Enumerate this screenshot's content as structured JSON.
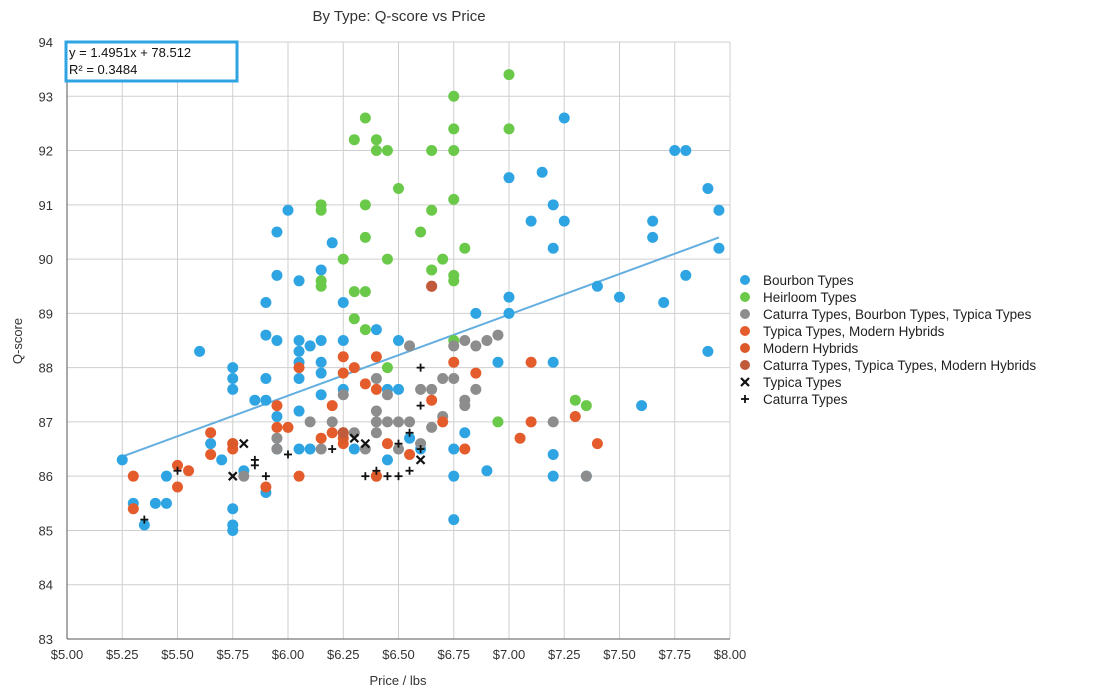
{
  "chart_data": {
    "type": "scatter",
    "title": "By Type: Q-score vs Price",
    "xlabel": "Price / lbs",
    "ylabel": "Q-score",
    "xlim": [
      5.0,
      8.0
    ],
    "ylim": [
      83,
      94
    ],
    "x_ticks": [
      "$5.00",
      "$5.25",
      "$5.50",
      "$5.75",
      "$6.00",
      "$6.25",
      "$6.50",
      "$6.75",
      "$7.00",
      "$7.25",
      "$7.50",
      "$7.75",
      "$8.00"
    ],
    "y_ticks": [
      "83",
      "84",
      "85",
      "86",
      "87",
      "88",
      "89",
      "90",
      "91",
      "92",
      "93",
      "94"
    ],
    "grid": true,
    "legend_position": "right",
    "trendline": {
      "equation": "y = 1.4951x + 78.512",
      "r_squared": "R² = 0.3484",
      "slope": 1.4951,
      "intercept": 78.512,
      "x_range": [
        5.25,
        7.95
      ],
      "color": "#64aee0"
    },
    "series": [
      {
        "name": "Bourbon Types",
        "marker": "circle",
        "color": "#2fa4e3",
        "points": [
          [
            5.25,
            86.3
          ],
          [
            5.3,
            85.5
          ],
          [
            5.35,
            85.1
          ],
          [
            5.4,
            85.5
          ],
          [
            5.45,
            86.0
          ],
          [
            5.45,
            85.5
          ],
          [
            5.6,
            88.3
          ],
          [
            5.65,
            86.6
          ],
          [
            5.7,
            86.3
          ],
          [
            5.75,
            88.0
          ],
          [
            5.75,
            87.8
          ],
          [
            5.75,
            87.6
          ],
          [
            5.75,
            85.4
          ],
          [
            5.75,
            85.1
          ],
          [
            5.75,
            85.0
          ],
          [
            5.8,
            86.1
          ],
          [
            5.85,
            87.4
          ],
          [
            5.9,
            89.2
          ],
          [
            5.9,
            88.6
          ],
          [
            5.9,
            87.8
          ],
          [
            5.9,
            87.4
          ],
          [
            5.9,
            85.7
          ],
          [
            5.95,
            90.5
          ],
          [
            5.95,
            89.7
          ],
          [
            5.95,
            88.5
          ],
          [
            5.95,
            87.1
          ],
          [
            5.95,
            86.5
          ],
          [
            6.0,
            90.9
          ],
          [
            6.05,
            89.6
          ],
          [
            6.05,
            88.5
          ],
          [
            6.05,
            88.3
          ],
          [
            6.05,
            88.1
          ],
          [
            6.05,
            87.8
          ],
          [
            6.05,
            87.2
          ],
          [
            6.05,
            86.5
          ],
          [
            6.1,
            88.4
          ],
          [
            6.1,
            86.5
          ],
          [
            6.15,
            89.8
          ],
          [
            6.15,
            88.5
          ],
          [
            6.15,
            88.1
          ],
          [
            6.15,
            87.9
          ],
          [
            6.15,
            87.5
          ],
          [
            6.2,
            90.3
          ],
          [
            6.25,
            89.2
          ],
          [
            6.25,
            88.5
          ],
          [
            6.25,
            87.6
          ],
          [
            6.3,
            86.5
          ],
          [
            6.4,
            88.7
          ],
          [
            6.45,
            86.3
          ],
          [
            6.45,
            87.6
          ],
          [
            6.5,
            88.5
          ],
          [
            6.5,
            87.6
          ],
          [
            6.55,
            86.7
          ],
          [
            6.6,
            86.5
          ],
          [
            6.75,
            86.0
          ],
          [
            6.75,
            85.2
          ],
          [
            6.75,
            86.5
          ],
          [
            6.8,
            86.8
          ],
          [
            6.85,
            89.0
          ],
          [
            6.9,
            86.1
          ],
          [
            6.95,
            88.1
          ],
          [
            7.0,
            91.5
          ],
          [
            7.0,
            89.3
          ],
          [
            7.0,
            89.0
          ],
          [
            7.1,
            90.7
          ],
          [
            7.15,
            91.6
          ],
          [
            7.2,
            91.0
          ],
          [
            7.2,
            90.2
          ],
          [
            7.2,
            88.1
          ],
          [
            7.2,
            86.4
          ],
          [
            7.2,
            86.0
          ],
          [
            7.25,
            92.6
          ],
          [
            7.25,
            90.7
          ],
          [
            7.35,
            86.0
          ],
          [
            7.4,
            89.5
          ],
          [
            7.5,
            89.3
          ],
          [
            7.6,
            87.3
          ],
          [
            7.65,
            90.7
          ],
          [
            7.65,
            90.4
          ],
          [
            7.7,
            89.2
          ],
          [
            7.75,
            92.0
          ],
          [
            7.8,
            92.0
          ],
          [
            7.8,
            89.7
          ],
          [
            7.9,
            91.3
          ],
          [
            7.9,
            88.3
          ],
          [
            7.95,
            90.9
          ],
          [
            7.95,
            90.2
          ]
        ]
      },
      {
        "name": "Heirloom Types",
        "marker": "circle",
        "color": "#6bc94a",
        "points": [
          [
            6.15,
            91.0
          ],
          [
            6.15,
            90.9
          ],
          [
            6.15,
            89.6
          ],
          [
            6.15,
            89.5
          ],
          [
            6.25,
            90.0
          ],
          [
            6.3,
            92.2
          ],
          [
            6.3,
            89.4
          ],
          [
            6.3,
            88.9
          ],
          [
            6.35,
            92.6
          ],
          [
            6.35,
            91.0
          ],
          [
            6.35,
            90.4
          ],
          [
            6.35,
            89.4
          ],
          [
            6.35,
            88.7
          ],
          [
            6.4,
            92.2
          ],
          [
            6.4,
            92.0
          ],
          [
            6.45,
            92.0
          ],
          [
            6.45,
            90.0
          ],
          [
            6.45,
            88.0
          ],
          [
            6.5,
            91.3
          ],
          [
            6.6,
            90.5
          ],
          [
            6.65,
            92.0
          ],
          [
            6.65,
            90.9
          ],
          [
            6.65,
            89.8
          ],
          [
            6.7,
            90.0
          ],
          [
            6.75,
            93.0
          ],
          [
            6.75,
            92.4
          ],
          [
            6.75,
            92.0
          ],
          [
            6.75,
            91.1
          ],
          [
            6.75,
            89.7
          ],
          [
            6.75,
            89.6
          ],
          [
            6.75,
            88.5
          ],
          [
            6.8,
            90.2
          ],
          [
            6.95,
            87.0
          ],
          [
            7.0,
            93.4
          ],
          [
            7.0,
            92.4
          ],
          [
            7.3,
            87.4
          ],
          [
            7.35,
            87.3
          ]
        ]
      },
      {
        "name": "Caturra Types, Bourbon Types, Typica Types",
        "marker": "circle",
        "color": "#8d8d8d",
        "points": [
          [
            5.8,
            86.0
          ],
          [
            5.95,
            86.7
          ],
          [
            5.95,
            86.5
          ],
          [
            6.1,
            87.0
          ],
          [
            6.15,
            86.5
          ],
          [
            6.2,
            87.0
          ],
          [
            6.25,
            87.5
          ],
          [
            6.3,
            86.8
          ],
          [
            6.35,
            86.5
          ],
          [
            6.4,
            87.8
          ],
          [
            6.4,
            87.2
          ],
          [
            6.4,
            87.0
          ],
          [
            6.4,
            86.8
          ],
          [
            6.45,
            87.5
          ],
          [
            6.45,
            87.0
          ],
          [
            6.5,
            87.0
          ],
          [
            6.5,
            86.5
          ],
          [
            6.55,
            88.4
          ],
          [
            6.55,
            87.0
          ],
          [
            6.6,
            87.6
          ],
          [
            6.6,
            86.6
          ],
          [
            6.65,
            87.6
          ],
          [
            6.65,
            86.9
          ],
          [
            6.7,
            87.8
          ],
          [
            6.7,
            87.1
          ],
          [
            6.75,
            88.4
          ],
          [
            6.75,
            87.8
          ],
          [
            6.8,
            88.5
          ],
          [
            6.8,
            87.4
          ],
          [
            6.8,
            87.3
          ],
          [
            6.85,
            88.4
          ],
          [
            6.85,
            87.6
          ],
          [
            6.9,
            88.5
          ],
          [
            6.95,
            88.6
          ],
          [
            7.2,
            87.0
          ],
          [
            7.35,
            86.0
          ]
        ]
      },
      {
        "name": "Typica Types, Modern Hybrids",
        "marker": "circle",
        "color": "#e45c2c",
        "points": [
          [
            5.3,
            86.0
          ],
          [
            5.3,
            85.4
          ],
          [
            5.5,
            86.2
          ],
          [
            5.5,
            85.8
          ],
          [
            5.55,
            86.1
          ],
          [
            5.65,
            86.8
          ],
          [
            5.65,
            86.4
          ],
          [
            5.75,
            86.6
          ],
          [
            5.75,
            86.5
          ],
          [
            5.9,
            85.8
          ],
          [
            5.95,
            87.3
          ],
          [
            5.95,
            86.9
          ],
          [
            6.0,
            86.9
          ],
          [
            6.05,
            88.0
          ],
          [
            6.05,
            86.0
          ],
          [
            6.15,
            86.7
          ],
          [
            6.2,
            87.3
          ],
          [
            6.2,
            86.8
          ],
          [
            6.25,
            88.2
          ],
          [
            6.25,
            87.9
          ],
          [
            6.25,
            86.8
          ],
          [
            6.25,
            86.6
          ],
          [
            6.3,
            88.0
          ],
          [
            6.35,
            87.7
          ],
          [
            6.4,
            88.2
          ],
          [
            6.4,
            87.6
          ],
          [
            6.4,
            86.0
          ],
          [
            6.45,
            86.6
          ],
          [
            6.55,
            86.4
          ],
          [
            6.65,
            87.4
          ],
          [
            6.7,
            87.0
          ],
          [
            6.75,
            88.1
          ],
          [
            6.8,
            86.5
          ],
          [
            6.85,
            87.9
          ],
          [
            7.05,
            86.7
          ],
          [
            7.1,
            88.1
          ],
          [
            7.1,
            87.0
          ],
          [
            7.3,
            87.1
          ],
          [
            7.4,
            86.6
          ]
        ]
      },
      {
        "name": "Modern Hybrids",
        "marker": "circle",
        "color": "#dc5a2a",
        "points": [
          [
            5.75,
            86.6
          ],
          [
            6.25,
            86.7
          ],
          [
            6.4,
            86.0
          ],
          [
            6.65,
            89.5
          ]
        ]
      },
      {
        "name": "Caturra Types, Typica Types, Modern Hybrids",
        "marker": "circle",
        "color": "#c05a3a",
        "points": [
          [
            6.65,
            89.5
          ],
          [
            6.25,
            86.8
          ]
        ]
      },
      {
        "name": "Typica Types",
        "marker": "x",
        "color": "#111111",
        "points": [
          [
            5.75,
            86.0
          ],
          [
            5.8,
            86.6
          ],
          [
            6.3,
            86.7
          ],
          [
            6.35,
            86.6
          ],
          [
            6.6,
            86.3
          ]
        ]
      },
      {
        "name": "Caturra Types",
        "marker": "plus",
        "color": "#111111",
        "points": [
          [
            5.35,
            85.2
          ],
          [
            5.5,
            86.1
          ],
          [
            5.85,
            86.3
          ],
          [
            5.85,
            86.2
          ],
          [
            5.9,
            86.0
          ],
          [
            6.0,
            86.4
          ],
          [
            6.35,
            86.0
          ],
          [
            6.4,
            86.1
          ],
          [
            6.45,
            86.0
          ],
          [
            6.5,
            86.0
          ],
          [
            6.5,
            86.6
          ],
          [
            6.55,
            86.8
          ],
          [
            6.55,
            86.1
          ],
          [
            6.6,
            88.0
          ],
          [
            6.6,
            87.3
          ],
          [
            6.6,
            86.5
          ],
          [
            6.2,
            86.5
          ]
        ]
      }
    ]
  }
}
